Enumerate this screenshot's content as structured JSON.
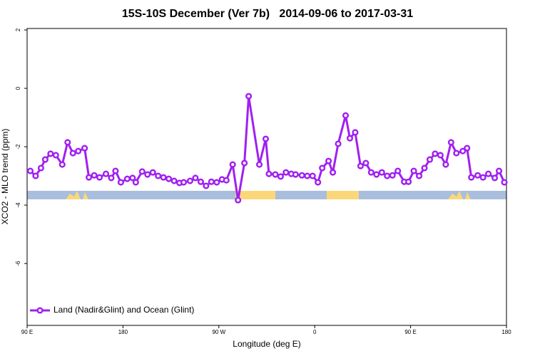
{
  "chart_data": {
    "type": "line",
    "title": "15S-10S December (Ver 7b)   2014-09-06 to 2017-03-31",
    "x_label": "Longitude (deg E)",
    "y_label": "XCO2 - MLO trend (ppm)",
    "xlim": [
      90,
      540
    ],
    "ylim": [
      -8.12,
      2.05
    ],
    "xticks": [
      {
        "value": 90,
        "label": "90 E"
      },
      180,
      {
        "value": 270,
        "label": "90 W"
      },
      {
        "value": 360,
        "label": "0"
      },
      {
        "value": 450,
        "label": "90 E"
      },
      {
        "value": 540,
        "label": "180"
      }
    ],
    "yticks": [
      2,
      0,
      -2,
      -4,
      -6
    ],
    "legend": "bottom-left",
    "series": [
      {
        "name": "Land (Nadir&Glint) and Ocean (Glint)",
        "color": "#a020f0",
        "x": [
          93,
          98,
          103,
          107,
          112,
          117,
          123,
          128,
          133,
          138,
          144,
          148,
          153,
          158,
          164,
          169,
          173,
          178,
          184,
          189,
          192,
          198,
          203,
          208,
          213,
          218,
          223,
          228,
          233,
          237,
          243,
          248,
          253,
          258,
          263,
          268,
          273,
          277,
          283,
          288,
          294,
          298,
          308,
          314,
          317,
          323,
          328,
          333,
          338,
          342,
          348,
          353,
          358,
          363,
          367,
          373,
          377,
          382,
          389,
          393,
          398,
          403,
          408,
          413,
          418,
          423,
          428,
          433,
          438,
          444,
          448,
          453,
          458,
          463,
          468,
          473,
          478,
          483,
          488,
          493,
          499,
          503,
          507,
          513,
          518,
          523,
          529,
          533,
          538
        ],
        "values": [
          -2.83,
          -3.0,
          -2.73,
          -2.44,
          -2.24,
          -2.29,
          -2.61,
          -1.85,
          -2.22,
          -2.15,
          -2.05,
          -3.05,
          -2.98,
          -3.05,
          -2.93,
          -3.07,
          -2.83,
          -3.22,
          -3.1,
          -3.07,
          -3.22,
          -2.85,
          -2.95,
          -2.88,
          -3.0,
          -3.05,
          -3.1,
          -3.17,
          -3.24,
          -3.22,
          -3.17,
          -3.07,
          -3.2,
          -3.34,
          -3.2,
          -3.22,
          -3.12,
          -3.15,
          -2.61,
          -3.83,
          -2.56,
          -0.27,
          -2.61,
          -1.73,
          -2.93,
          -2.95,
          -3.02,
          -2.88,
          -2.93,
          -2.95,
          -2.98,
          -3.0,
          -3.0,
          -3.22,
          -2.73,
          -2.49,
          -2.88,
          -1.9,
          -0.93,
          -1.71,
          -1.51,
          -2.66,
          -2.56,
          -2.88,
          -2.95,
          -2.88,
          -3.0,
          -2.98,
          -2.83,
          -3.2,
          -3.2,
          -2.83,
          -3.0,
          -2.73,
          -2.44,
          -2.24,
          -2.29,
          -2.61,
          -1.85,
          -2.22,
          -2.15,
          -2.05,
          -3.05,
          -2.98,
          -3.05,
          -2.93,
          -3.07,
          -2.83,
          -3.22
        ]
      }
    ]
  }
}
